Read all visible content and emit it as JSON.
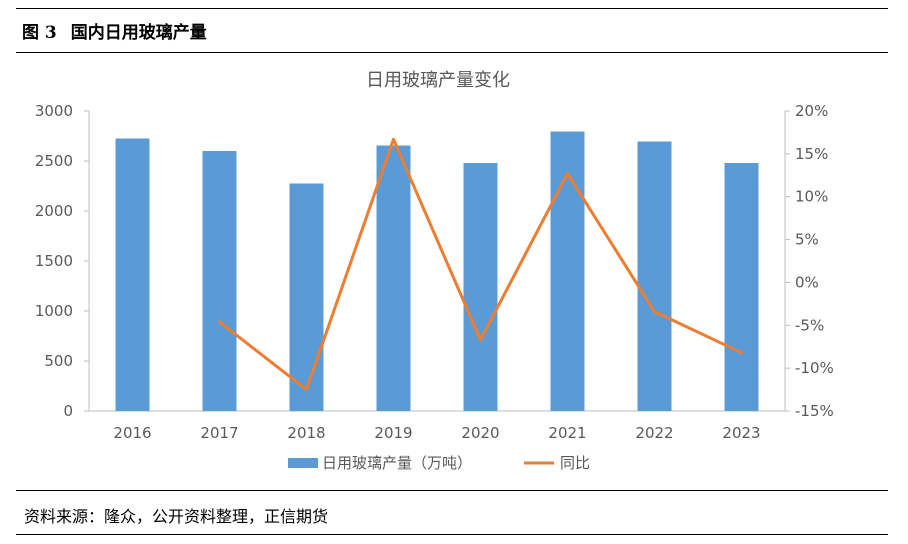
{
  "figure": {
    "number": "图 3",
    "title": "国内日用玻璃产量",
    "source": "资料来源：隆众，公开资料整理，正信期货"
  },
  "chart_data": {
    "type": "bar+line",
    "title": "日用玻璃产量变化",
    "categories": [
      "2016",
      "2017",
      "2018",
      "2019",
      "2020",
      "2021",
      "2022",
      "2023"
    ],
    "series": [
      {
        "name": "日用玻璃产量（万吨）",
        "type": "bar",
        "axis": "left",
        "values": [
          2725,
          2600,
          2275,
          2655,
          2480,
          2795,
          2695,
          2480
        ],
        "color": "#5b9bd5"
      },
      {
        "name": "同比",
        "type": "line",
        "axis": "right",
        "values": [
          null,
          -4.6,
          -12.5,
          16.7,
          -6.7,
          12.7,
          -3.4,
          -8.2
        ],
        "color": "#ed7d31"
      }
    ],
    "y_left": {
      "min": 0,
      "max": 3000,
      "ticks": [
        0,
        500,
        1000,
        1500,
        2000,
        2500,
        3000
      ]
    },
    "y_right": {
      "min": -15,
      "max": 20,
      "ticks": [
        "-15%",
        "-10%",
        "-5%",
        "0%",
        "5%",
        "10%",
        "15%",
        "20%"
      ]
    },
    "grid": false,
    "legend_position": "bottom"
  }
}
